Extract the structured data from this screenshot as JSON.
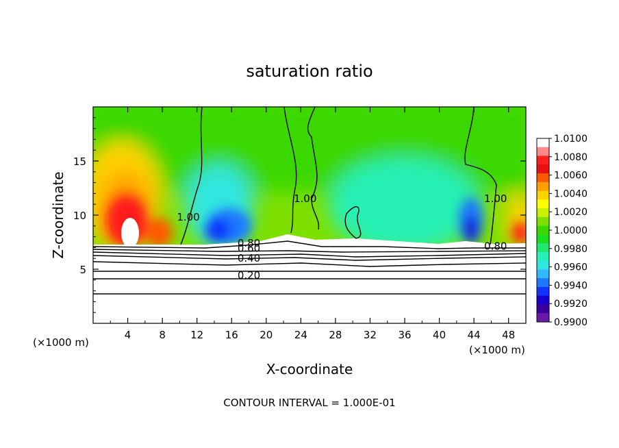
{
  "chart_data": {
    "type": "heatmap",
    "title": "saturation ratio",
    "xlabel": "X-coordinate",
    "ylabel": "Z-coordinate",
    "x_unit_label": "(×1000 m)",
    "x_unit_label_right": "(×1000 m)",
    "xlim": [
      0,
      50
    ],
    "ylim": [
      0,
      20
    ],
    "x_ticks": [
      4,
      8,
      12,
      16,
      20,
      24,
      28,
      32,
      36,
      40,
      44,
      48
    ],
    "y_ticks": [
      5,
      10,
      15
    ],
    "footer": "CONTOUR INTERVAL = 1.000E-01",
    "colorbar": {
      "levels": [
        "1.0100",
        "1.0080",
        "1.0060",
        "1.0040",
        "1.0020",
        "1.0000",
        "0.9980",
        "0.9960",
        "0.9940",
        "0.9920",
        "0.9900"
      ],
      "colors": [
        "#ffffff",
        "#ff8a8a",
        "#ff1e1e",
        "#e81010",
        "#ff5a00",
        "#ffa000",
        "#ffd200",
        "#ffff00",
        "#c8f000",
        "#7ee000",
        "#3ad800",
        "#18e020",
        "#1ee86e",
        "#28f0b4",
        "#30e6e0",
        "#34b8ff",
        "#1e78ff",
        "#1034ff",
        "#1800d0",
        "#3c00a0",
        "#6a1aa8"
      ]
    },
    "contour_labels": [
      {
        "text": "1.00",
        "x": 11,
        "z": 9.5
      },
      {
        "text": "1.00",
        "x": 24.5,
        "z": 11.2
      },
      {
        "text": "1.00",
        "x": 46.5,
        "z": 11.2
      },
      {
        "text": "0.80",
        "x": 18,
        "z": 7.1
      },
      {
        "text": "0.60",
        "x": 18,
        "z": 6.6
      },
      {
        "text": "0.40",
        "x": 18,
        "z": 5.7
      },
      {
        "text": "0.20",
        "x": 18,
        "z": 4.1
      },
      {
        "text": "0.80",
        "x": 46.5,
        "z": 6.8
      }
    ]
  }
}
